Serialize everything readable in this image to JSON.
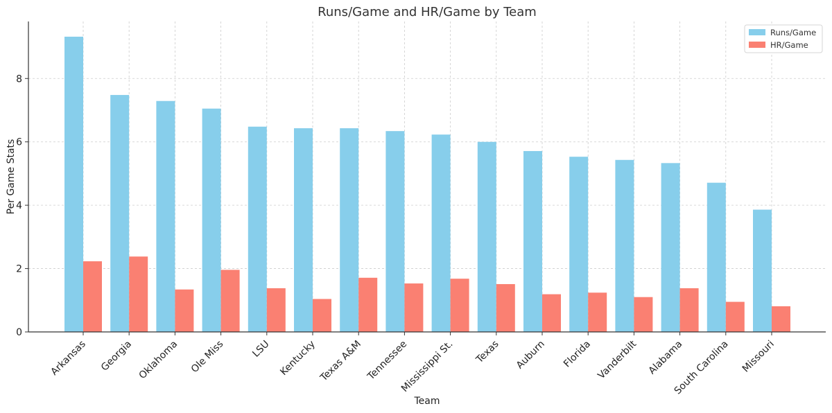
{
  "chart_data": {
    "type": "bar",
    "title": "Runs/Game and HR/Game by Team",
    "xlabel": "Team",
    "ylabel": "Per Game Stats",
    "categories": [
      "Arkansas",
      "Georgia",
      "Oklahoma",
      "Ole Miss",
      "LSU",
      "Kentucky",
      "Texas A&M",
      "Tennessee",
      "Mississippi St.",
      "Texas",
      "Auburn",
      "Florida",
      "Vanderbilt",
      "Alabama",
      "South Carolina",
      "Missouri"
    ],
    "series": [
      {
        "name": "Runs/Game",
        "color": "#87ceeb",
        "values": [
          9.32,
          7.48,
          7.29,
          7.05,
          6.48,
          6.43,
          6.43,
          6.34,
          6.23,
          6.0,
          5.71,
          5.53,
          5.43,
          5.33,
          4.71,
          3.86
        ]
      },
      {
        "name": "HR/Game",
        "color": "#fa8072",
        "values": [
          2.23,
          2.38,
          1.34,
          1.96,
          1.38,
          1.04,
          1.71,
          1.53,
          1.68,
          1.51,
          1.19,
          1.24,
          1.1,
          1.38,
          0.95,
          0.81
        ]
      }
    ],
    "ylim": [
      0,
      9.8
    ],
    "yticks": [
      "0",
      "2",
      "4",
      "6",
      "8"
    ],
    "grid": true,
    "legend_position": "top-right"
  }
}
